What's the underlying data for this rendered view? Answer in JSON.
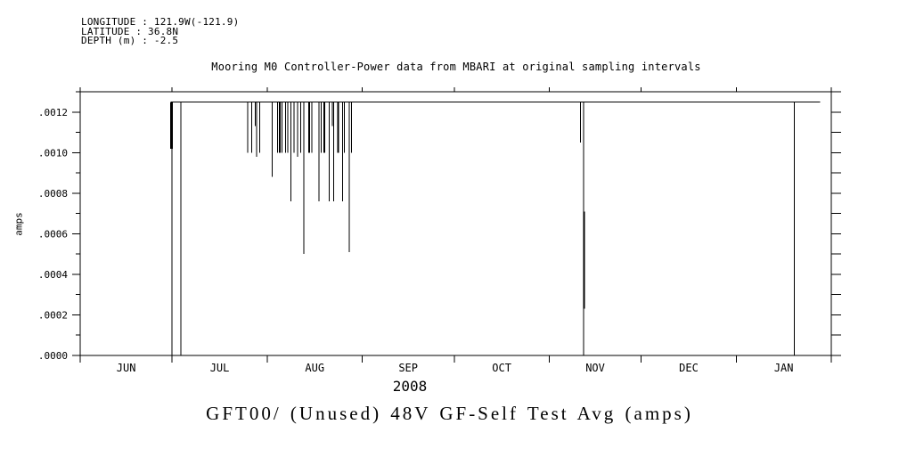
{
  "meta": {
    "longitude_line": "LONGITUDE : 121.9W(-121.9)",
    "latitude_line": "LATITUDE : 36.8N",
    "depth_line": "DEPTH (m) : -2.5"
  },
  "title": "Mooring M0 Controller-Power data from MBARI at original sampling intervals",
  "footer_title": "GFT00/ (Unused) 48V GF-Self Test Avg (amps)",
  "chart_data": {
    "type": "line",
    "title": "Mooring M0 Controller-Power data from MBARI at original sampling intervals",
    "subtitle": "GFT00/ (Unused) 48V GF-Self Test Avg (amps)",
    "ylabel": "amps",
    "year_label": "2008",
    "grid": false,
    "colors": {
      "line": "#000000",
      "background": "#ffffff",
      "axis": "#000000"
    },
    "y_axis": {
      "min": 0,
      "max": 0.0013,
      "minor_step": 0.0001,
      "major_tick_values": [
        0.0,
        0.0002,
        0.0004,
        0.0006,
        0.0008,
        0.001,
        0.0012
      ],
      "major_tick_labels": [
        ".0000",
        ".0002",
        ".0004",
        ".0006",
        ".0008",
        ".0010",
        ".0012"
      ]
    },
    "x_axis": {
      "start_date": "2008-06-01",
      "end_date": "2009-02-01",
      "total_days": 245,
      "month_boundaries_days": [
        0,
        30,
        61,
        92,
        122,
        153,
        183,
        214,
        245
      ],
      "month_labels": [
        "JUN",
        "JUL",
        "AUG",
        "SEP",
        "OCT",
        "NOV",
        "DEC",
        "JAN"
      ]
    },
    "series": {
      "name": "48V GF-Self Test Avg (amps)",
      "baseline_value": 0.00125,
      "start_day": 29.6,
      "end_day": 241.4,
      "downward_spikes": [
        [
          29.8,
          0.00102,
          3
        ],
        [
          30.0,
          0.0,
          1
        ],
        [
          32.8,
          0.0,
          1
        ],
        [
          54.7,
          0.001,
          1
        ],
        [
          55.9,
          0.001,
          1
        ],
        [
          57.1,
          0.00113,
          1
        ],
        [
          57.6,
          0.00098,
          1
        ],
        [
          58.6,
          0.001,
          1
        ],
        [
          62.7,
          0.00088,
          1
        ],
        [
          64.4,
          0.001,
          1
        ],
        [
          65.1,
          0.001,
          2
        ],
        [
          65.8,
          0.001,
          1
        ],
        [
          67.0,
          0.001,
          1
        ],
        [
          67.7,
          0.001,
          1
        ],
        [
          68.7,
          0.00076,
          1
        ],
        [
          69.7,
          0.001,
          1
        ],
        [
          70.9,
          0.00098,
          1
        ],
        [
          71.9,
          0.001,
          1
        ],
        [
          72.9,
          0.0005,
          1
        ],
        [
          74.7,
          0.001,
          2
        ],
        [
          75.5,
          0.001,
          1
        ],
        [
          77.9,
          0.00076,
          1
        ],
        [
          78.6,
          0.001,
          1
        ],
        [
          79.6,
          0.001,
          2
        ],
        [
          81.3,
          0.00076,
          1
        ],
        [
          82.2,
          0.00113,
          1
        ],
        [
          82.7,
          0.00076,
          1
        ],
        [
          84.2,
          0.001,
          2
        ],
        [
          85.6,
          0.00076,
          1
        ],
        [
          86.1,
          0.001,
          1
        ],
        [
          87.8,
          0.00051,
          1
        ],
        [
          88.5,
          0.001,
          1
        ],
        [
          163.2,
          0.00105,
          1
        ],
        [
          164.2,
          0.0,
          1
        ],
        [
          233.0,
          0.0,
          1
        ]
      ],
      "wide_partial_segments": [
        {
          "day": 164.4,
          "from": 0.00071,
          "to": 0.00023,
          "width": 2
        }
      ]
    }
  }
}
